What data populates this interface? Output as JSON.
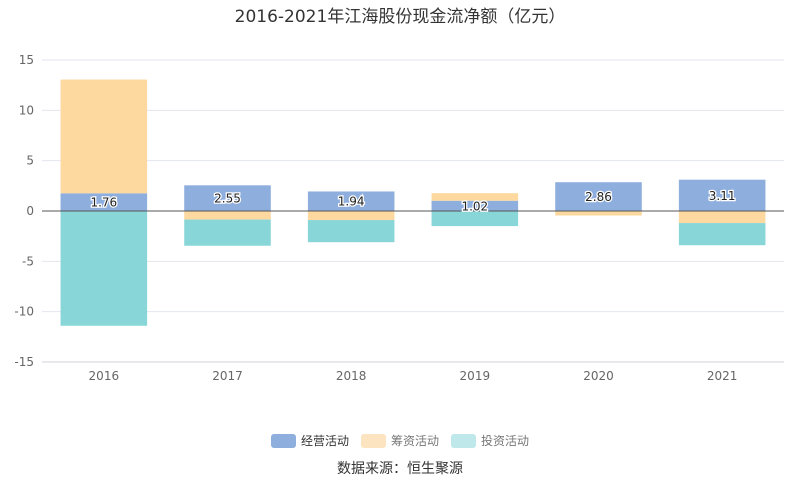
{
  "chart_data": {
    "type": "bar",
    "stacked": true,
    "title": "2016-2021年江海股份现金流净额（亿元）",
    "categories": [
      "2016",
      "2017",
      "2018",
      "2019",
      "2020",
      "2021"
    ],
    "ylim": [
      -15,
      15
    ],
    "yticks": [
      15,
      10,
      5,
      0,
      -5,
      -10,
      -15
    ],
    "grid": true,
    "legend_position": "bottom",
    "series": [
      {
        "name": "经营活动",
        "color": "#8eaede",
        "values": [
          1.76,
          2.55,
          1.94,
          1.02,
          2.86,
          3.11
        ],
        "show_labels": true
      },
      {
        "name": "筹资活动",
        "color": "#fdd99f",
        "values": [
          11.3,
          -0.85,
          -0.9,
          0.75,
          -0.45,
          -1.2
        ],
        "show_labels": false
      },
      {
        "name": "投资活动",
        "color": "#89d6d9",
        "values": [
          -11.4,
          -2.6,
          -2.2,
          -1.5,
          0,
          -2.2
        ],
        "show_labels": false
      }
    ]
  },
  "legend": [
    {
      "name": "经营活动",
      "color": "#8eaede",
      "dim": false
    },
    {
      "name": "筹资活动",
      "color": "#fde4c0",
      "dim": true
    },
    {
      "name": "投资活动",
      "color": "#bfe8ea",
      "dim": true
    }
  ],
  "source": "数据来源：恒生聚源"
}
